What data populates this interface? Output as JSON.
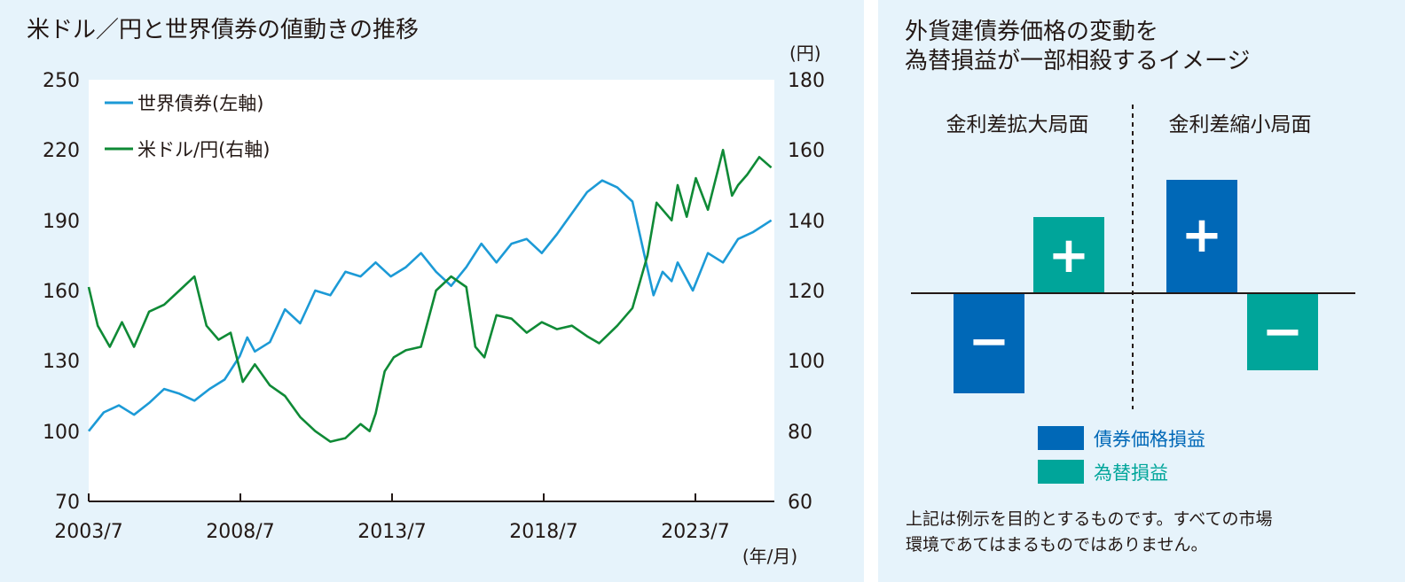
{
  "left_chart": {
    "title": "米ドル／円と世界債券の値動きの推移",
    "y_left_ticks": [
      "250",
      "220",
      "190",
      "160",
      "130",
      "100",
      "70"
    ],
    "y_right_ticks": [
      "180",
      "160",
      "140",
      "120",
      "100",
      "80",
      "60"
    ],
    "y_right_unit": "(円)",
    "x_ticks": [
      "2003/7",
      "2008/7",
      "2013/7",
      "2018/7",
      "2023/7"
    ],
    "x_unit": "(年/月)",
    "legend": [
      {
        "label": "世界債券(左軸)",
        "color": "#1c9ad6"
      },
      {
        "label": "米ドル/円(右軸)",
        "color": "#0f8a36"
      }
    ]
  },
  "right_chart": {
    "title_line1": "外貨建債券価格の変動を",
    "title_line2": "為替損益が一部相殺するイメージ",
    "left_phase_label": "金利差拡大局面",
    "right_phase_label": "金利差縮小局面",
    "bar_signs": {
      "bond_expand": "−",
      "fx_expand": "+",
      "bond_shrink": "+",
      "fx_shrink": "−"
    },
    "legend": [
      {
        "label": "債券価格損益",
        "color": "#0068b7"
      },
      {
        "label": "為替損益",
        "color": "#00a59a"
      }
    ],
    "note_line1": "上記は例示を目的とするものです。すべての市場",
    "note_line2": "環境であてはまるものではありません。"
  },
  "chart_data": [
    {
      "type": "line",
      "title": "米ドル／円と世界債券の値動きの推移",
      "xlabel": "(年/月)",
      "ylabel_left": "",
      "ylabel_right": "(円)",
      "ylim_left": [
        70,
        250
      ],
      "ylim_right": [
        60,
        180
      ],
      "x_range": [
        2003.5,
        2026.2
      ],
      "x_tick_labels": [
        "2003/7",
        "2008/7",
        "2013/7",
        "2018/7",
        "2023/7"
      ],
      "grid": false,
      "legend_position": "top-left",
      "series": [
        {
          "name": "世界債券(左軸)",
          "axis": "left",
          "color": "#1c9ad6",
          "x": [
            2003.5,
            2004.0,
            2004.5,
            2005.0,
            2005.5,
            2006.0,
            2006.5,
            2007.0,
            2007.5,
            2008.0,
            2008.5,
            2008.75,
            2009.0,
            2009.5,
            2010.0,
            2010.5,
            2011.0,
            2011.5,
            2012.0,
            2012.5,
            2013.0,
            2013.5,
            2014.0,
            2014.5,
            2015.0,
            2015.5,
            2016.0,
            2016.5,
            2016.75,
            2017.0,
            2017.5,
            2018.0,
            2018.5,
            2019.0,
            2019.5,
            2020.0,
            2020.5,
            2021.0,
            2021.5,
            2021.9,
            2022.2,
            2022.5,
            2022.8,
            2023.0,
            2023.5,
            2024.0,
            2024.5,
            2025.0,
            2025.5,
            2026.1
          ],
          "values": [
            100,
            108,
            111,
            107,
            112,
            118,
            116,
            113,
            118,
            122,
            132,
            140,
            134,
            138,
            152,
            146,
            160,
            158,
            168,
            166,
            172,
            166,
            170,
            176,
            168,
            162,
            170,
            180,
            176,
            172,
            180,
            182,
            176,
            184,
            193,
            202,
            207,
            204,
            198,
            175,
            158,
            168,
            164,
            172,
            160,
            176,
            172,
            182,
            185,
            190
          ]
        },
        {
          "name": "米ドル/円(右軸)",
          "axis": "right",
          "color": "#0f8a36",
          "x": [
            2003.5,
            2003.8,
            2004.2,
            2004.6,
            2005.0,
            2005.5,
            2006.0,
            2006.5,
            2007.0,
            2007.4,
            2007.8,
            2008.2,
            2008.6,
            2009.0,
            2009.5,
            2010.0,
            2010.5,
            2011.0,
            2011.5,
            2012.0,
            2012.5,
            2012.8,
            2013.0,
            2013.3,
            2013.6,
            2014.0,
            2014.5,
            2015.0,
            2015.5,
            2016.0,
            2016.3,
            2016.6,
            2017.0,
            2017.5,
            2018.0,
            2018.5,
            2019.0,
            2019.5,
            2020.0,
            2020.4,
            2021.0,
            2021.5,
            2022.0,
            2022.3,
            2022.8,
            2023.0,
            2023.3,
            2023.6,
            2024.0,
            2024.5,
            2024.8,
            2025.0,
            2025.3,
            2025.7,
            2026.1
          ],
          "values": [
            121,
            110,
            104,
            111,
            104,
            114,
            116,
            120,
            124,
            110,
            106,
            108,
            94,
            99,
            93,
            90,
            84,
            80,
            77,
            78,
            82,
            80,
            85,
            97,
            101,
            103,
            104,
            120,
            124,
            121,
            104,
            101,
            113,
            112,
            108,
            111,
            109,
            110,
            107,
            105,
            110,
            115,
            130,
            145,
            140,
            150,
            141,
            152,
            143,
            160,
            147,
            150,
            153,
            158,
            155
          ]
        }
      ]
    },
    {
      "type": "bar",
      "title": "外貨建債券価格の変動を為替損益が一部相殺するイメージ",
      "categories": [
        "金利差拡大局面",
        "金利差縮小局面"
      ],
      "series": [
        {
          "name": "債券価格損益",
          "values": [
            -1,
            1
          ]
        },
        {
          "name": "為替損益",
          "values": [
            0.8,
            -0.8
          ]
        }
      ]
    }
  ]
}
